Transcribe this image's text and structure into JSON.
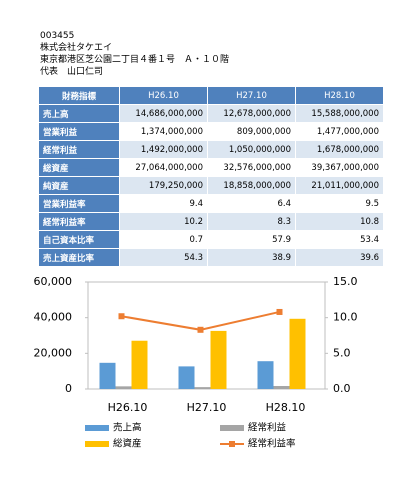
{
  "header": {
    "code": "003455",
    "company": "株式会社タケエイ",
    "address": "東京都港区芝公園二丁目４番１号　Ａ・１０階",
    "representative": "代表　山口仁司"
  },
  "table": {
    "rows": [
      [
        "財務指標",
        "H26.10",
        "H27.10",
        "H28.10"
      ],
      [
        "売上高",
        "14,686,000,000",
        "12,678,000,000",
        "15,588,000,000"
      ],
      [
        "営業利益",
        "1,374,000,000",
        "809,000,000",
        "1,477,000,000"
      ],
      [
        "経常利益",
        "1,492,000,000",
        "1,050,000,000",
        "1,678,000,000"
      ],
      [
        "総資産",
        "27,064,000,000",
        "32,576,000,000",
        "39,367,000,000"
      ],
      [
        "純資産",
        "179,250,000",
        "18,858,000,000",
        "21,011,000,000"
      ],
      [
        "営業利益率",
        "9.4",
        "6.4",
        "9.5"
      ],
      [
        "経常利益率",
        "10.2",
        "8.3",
        "10.8"
      ],
      [
        "自己資本比率",
        "0.7",
        "57.9",
        "53.4"
      ],
      [
        "売上資産比率",
        "54.3",
        "38.9",
        "39.6"
      ]
    ]
  },
  "chart_data": {
    "type": "bar",
    "categories": [
      "H26.10",
      "H27.10",
      "H28.10"
    ],
    "series": [
      {
        "name": "売上高",
        "color": "#5b9bd5",
        "values": [
          14686,
          12678,
          15588
        ]
      },
      {
        "name": "経常利益",
        "color": "#a5a5a5",
        "values": [
          1492,
          1050,
          1678
        ]
      },
      {
        "name": "総資産",
        "color": "#ffc000",
        "values": [
          27064,
          32576,
          39367
        ]
      },
      {
        "name": "経常利益率",
        "color": "#ed7d31",
        "values": [
          10.2,
          8.3,
          10.8
        ],
        "axis": "y2",
        "type": "line"
      }
    ],
    "ylim": [
      0,
      60000
    ],
    "yticks": [
      0,
      {
        "value": 20000,
        "label": "20,000"
      },
      {
        "value": 40000,
        "label": "40,000"
      },
      {
        "value": 60000,
        "label": "60,000"
      }
    ],
    "y2lim": [
      0,
      15
    ],
    "y2ticks": [
      {
        "value": 0,
        "label": "0.0"
      },
      {
        "value": 5,
        "label": "5.0"
      },
      {
        "value": 10,
        "label": "10.0"
      },
      {
        "value": 15,
        "label": "15.0"
      }
    ]
  }
}
